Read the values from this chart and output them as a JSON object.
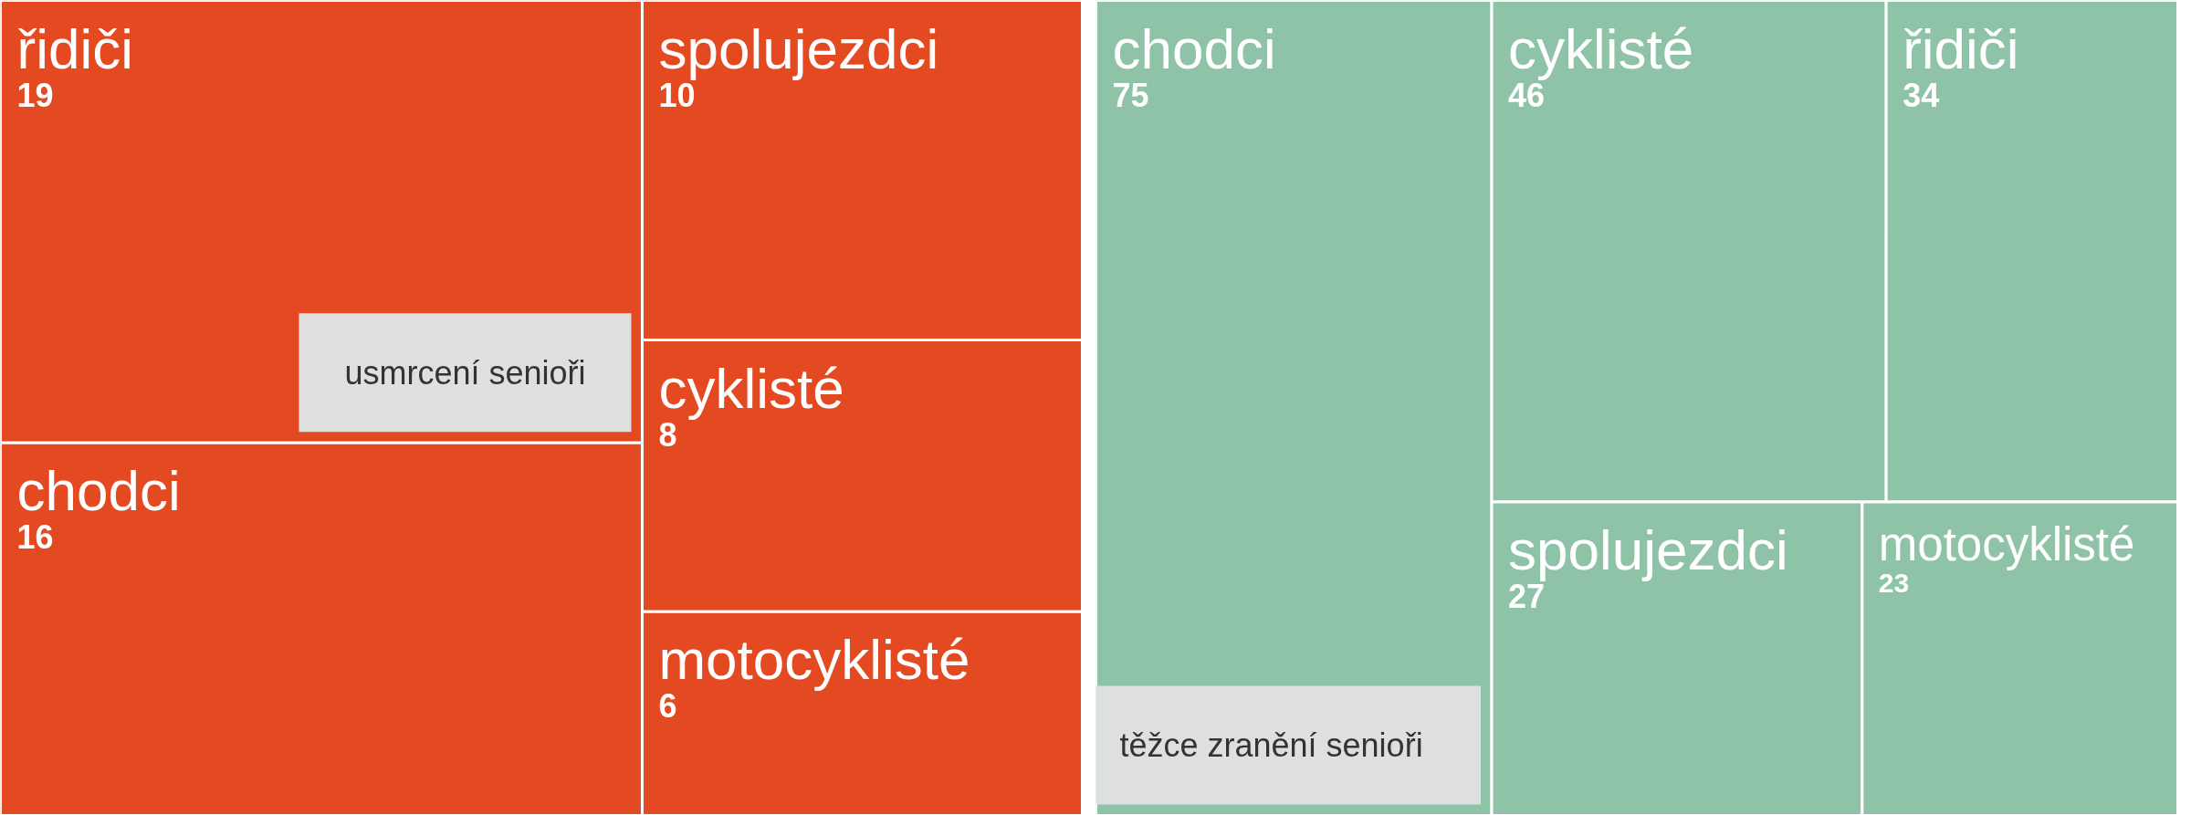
{
  "chart_data": [
    {
      "type": "other",
      "title": "usmrcení senioři",
      "color": "#e34a21",
      "categories": [
        "řidiči",
        "chodci",
        "spolujezdci",
        "cyklisté",
        "motocyklisté"
      ],
      "values": [
        19,
        16,
        10,
        8,
        6
      ],
      "data_labels": true
    },
    {
      "type": "other",
      "title": "těžce zranění senioři",
      "color": "#8ec3a7",
      "categories": [
        "chodci",
        "cyklisté",
        "řidiči",
        "spolujezdci",
        "motocyklisté"
      ],
      "values": [
        75,
        46,
        34,
        27,
        23
      ],
      "data_labels": true
    }
  ]
}
